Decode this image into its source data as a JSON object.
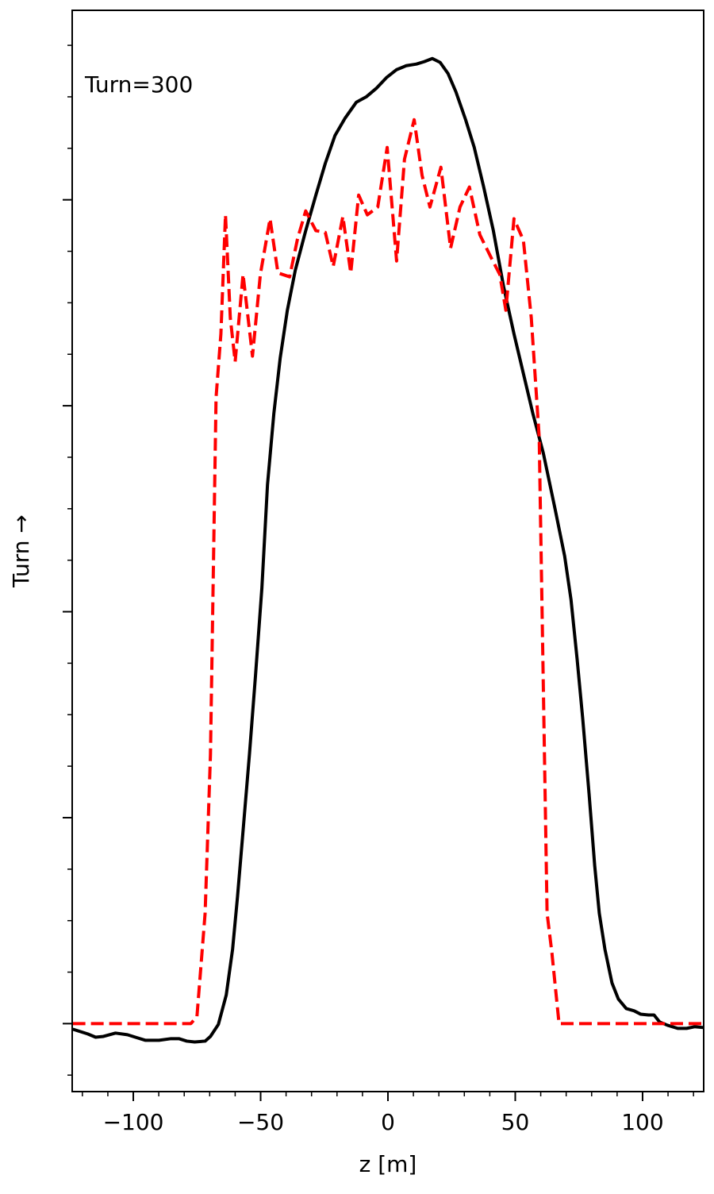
{
  "chart_data": {
    "type": "line",
    "annotation": "Turn=300",
    "xlabel": "z [m]",
    "ylabel": "Turn →",
    "xlim": [
      -124,
      124
    ],
    "ylim": [
      -0.33,
      4.92
    ],
    "xticks": [
      {
        "value": -100,
        "label": "−100"
      },
      {
        "value": -50,
        "label": "−50"
      },
      0,
      50,
      100
    ],
    "xminorticks": [
      -120,
      -110,
      -90,
      -80,
      -70,
      -60,
      -40,
      -30,
      -20,
      -10,
      10,
      20,
      30,
      40,
      60,
      70,
      80,
      90,
      110,
      120
    ],
    "yticks": [
      0,
      1,
      2,
      3,
      4
    ],
    "yminorticks": [
      -0.25,
      0.25,
      0.5,
      0.75,
      1.25,
      1.5,
      1.75,
      2.25,
      2.5,
      2.75,
      3.25,
      3.5,
      3.75,
      4.25,
      4.5,
      4.75
    ],
    "series": [
      {
        "color": "#000000",
        "dash": false,
        "x": [
          -123.8,
          -117.9,
          -114.8,
          -111.7,
          -107.0,
          -102.3,
          -99.2,
          -95.2,
          -89.9,
          -85.2,
          -82.1,
          -79.0,
          -75.9,
          -71.8,
          -69.7,
          -66.6,
          -63.5,
          -61.0,
          -59.1,
          -57.0,
          -54.4,
          -52.0,
          -49.5,
          -47.3,
          -44.8,
          -42.3,
          -39.5,
          -36.4,
          -32.3,
          -28.3,
          -24.6,
          -20.8,
          -16.8,
          -12.4,
          -8.4,
          -4.4,
          -0.6,
          3.4,
          7.2,
          11.2,
          14.3,
          17.4,
          20.5,
          23.6,
          26.7,
          30.5,
          33.9,
          37.6,
          41.4,
          45.4,
          49.5,
          53.2,
          56.9,
          61.0,
          65.6,
          69.4,
          71.9,
          74.3,
          76.5,
          79.0,
          81.2,
          83.0,
          85.2,
          88.0,
          90.5,
          93.6,
          96.7,
          99.2,
          102.3,
          104.5,
          106.7,
          109.8,
          113.8,
          117.3,
          120.4,
          123.8
        ],
        "values": [
          -0.027,
          -0.05,
          -0.066,
          -0.062,
          -0.046,
          -0.054,
          -0.066,
          -0.081,
          -0.081,
          -0.073,
          -0.073,
          -0.085,
          -0.089,
          -0.085,
          -0.062,
          -0.004,
          0.139,
          0.362,
          0.613,
          0.921,
          1.306,
          1.692,
          2.116,
          2.617,
          2.963,
          3.233,
          3.464,
          3.657,
          3.85,
          4.023,
          4.177,
          4.312,
          4.397,
          4.474,
          4.501,
          4.543,
          4.593,
          4.632,
          4.651,
          4.659,
          4.671,
          4.686,
          4.667,
          4.613,
          4.524,
          4.389,
          4.254,
          4.062,
          3.85,
          3.58,
          3.349,
          3.156,
          2.963,
          2.771,
          2.501,
          2.27,
          2.058,
          1.769,
          1.48,
          1.114,
          0.767,
          0.536,
          0.362,
          0.197,
          0.119,
          0.073,
          0.062,
          0.046,
          0.042,
          0.042,
          0.008,
          -0.008,
          -0.023,
          -0.023,
          -0.015,
          -0.019
        ]
      },
      {
        "color": "#ff0000",
        "dash": true,
        "x": [
          -123.8,
          -77.4,
          -75.0,
          -71.8,
          -69.7,
          -67.5,
          -65.6,
          -63.8,
          -61.9,
          -60.0,
          -56.9,
          -53.2,
          -50.1,
          -46.3,
          -43.2,
          -38.6,
          -35.5,
          -32.3,
          -28.3,
          -24.6,
          -21.5,
          -17.7,
          -14.6,
          -11.5,
          -8.1,
          -4.0,
          -0.3,
          3.4,
          6.5,
          10.3,
          13.4,
          16.5,
          20.8,
          24.6,
          28.3,
          32.0,
          36.1,
          40.7,
          43.9,
          46.3,
          49.5,
          53.2,
          56.3,
          59.4,
          62.5,
          64.4,
          67.2,
          123.8
        ],
        "values": [
          0,
          0,
          0.035,
          0.536,
          1.306,
          3.04,
          3.349,
          3.927,
          3.426,
          3.214,
          3.638,
          3.241,
          3.638,
          3.908,
          3.645,
          3.626,
          3.811,
          3.946,
          3.85,
          3.842,
          3.676,
          3.919,
          3.645,
          4.023,
          3.927,
          3.965,
          4.254,
          3.703,
          4.197,
          4.389,
          4.119,
          3.965,
          4.158,
          3.765,
          3.965,
          4.062,
          3.83,
          3.715,
          3.638,
          3.464,
          3.908,
          3.803,
          3.426,
          2.848,
          0.536,
          0.343,
          0,
          0
        ]
      }
    ]
  }
}
